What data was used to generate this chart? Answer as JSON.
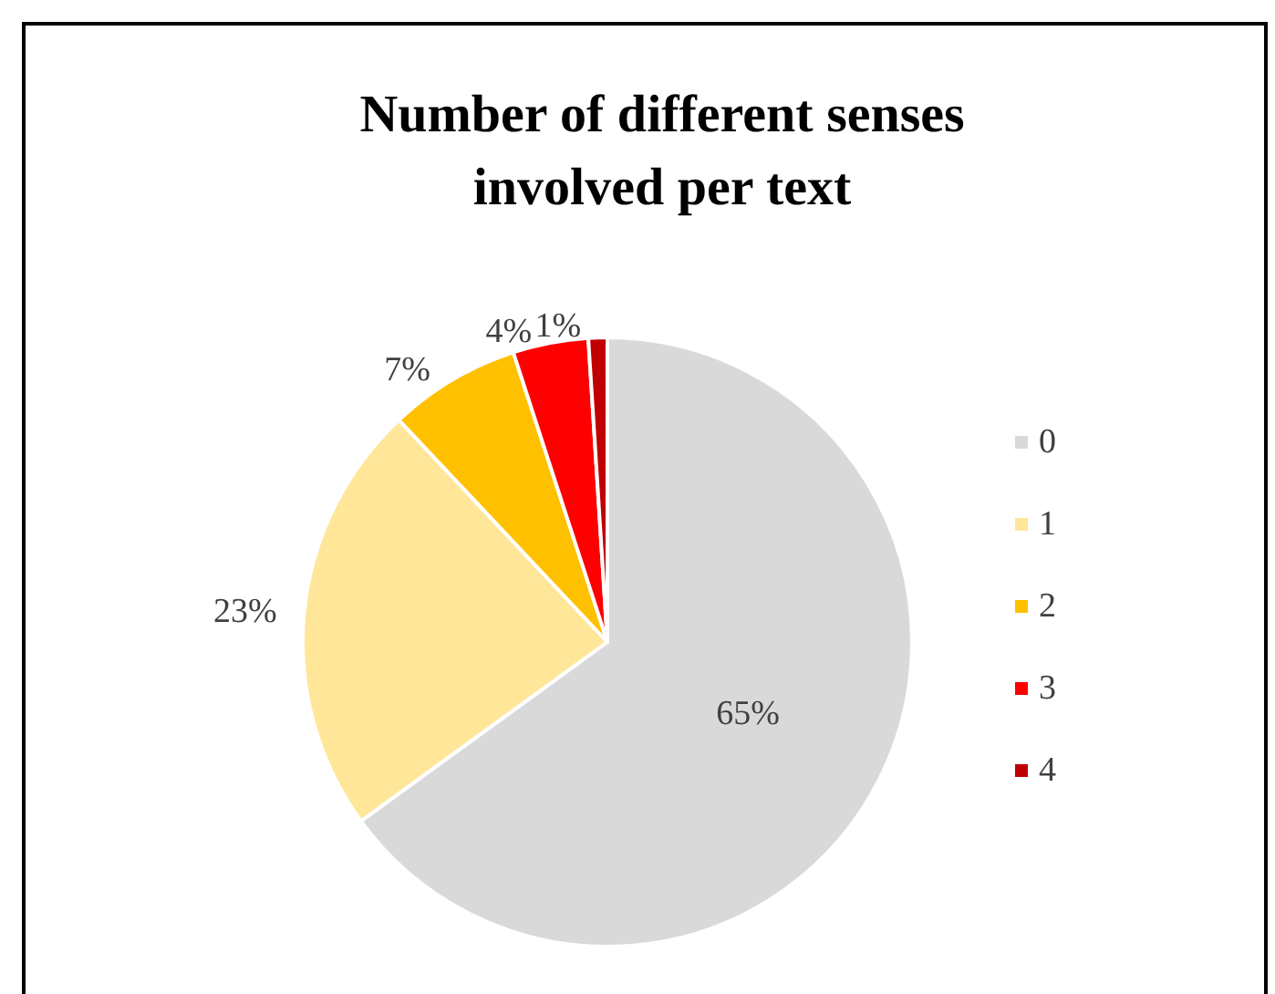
{
  "chart_data": {
    "type": "pie",
    "title": "Number of different senses\ninvolved per text",
    "categories": [
      "0",
      "1",
      "2",
      "3",
      "4"
    ],
    "values": [
      65,
      23,
      7,
      4,
      1
    ],
    "colors": [
      "#d9d9d9",
      "#ffe699",
      "#ffc000",
      "#ff0000",
      "#c00000"
    ],
    "value_labels": [
      "65%",
      "23%",
      "7%",
      "4%",
      "1%"
    ],
    "legend": "right"
  }
}
